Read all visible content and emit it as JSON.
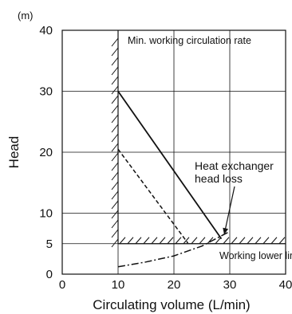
{
  "chart_data": {
    "type": "line",
    "title": "",
    "xlabel": "Circulating volume (L/min)",
    "ylabel": "Head",
    "y_unit": "(m)",
    "xlim": [
      0,
      40
    ],
    "ylim": [
      0,
      40
    ],
    "x_ticks": [
      0,
      10,
      20,
      30,
      40
    ],
    "x_tick_labels": [
      "0",
      "10",
      "20",
      "30",
      "40"
    ],
    "y_ticks": [
      0,
      5,
      10,
      20,
      30,
      40
    ],
    "y_tick_labels": [
      "0",
      "5",
      "10",
      "20",
      "30",
      "40"
    ],
    "grid": true,
    "series": [
      {
        "style": "solid",
        "color": "#111111",
        "x": [
          10,
          28.5
        ],
        "y": [
          30,
          5.8
        ]
      },
      {
        "style": "dashed",
        "color": "#111111",
        "x": [
          10,
          22.5
        ],
        "y": [
          20.5,
          5.1
        ]
      },
      {
        "style": "dash-dot",
        "color": "#111111",
        "x": [
          10,
          15,
          20,
          25,
          30
        ],
        "y": [
          1.2,
          2.0,
          3.0,
          4.6,
          7.0
        ]
      }
    ],
    "regions": [
      {
        "label": "Min. working circulation rate",
        "type": "vertical-limit",
        "x": 10,
        "y_range": [
          5,
          40
        ]
      },
      {
        "label": "Working lower limit",
        "type": "horizontal-limit",
        "y": 5,
        "x_range": [
          10,
          40
        ]
      }
    ],
    "annotations": [
      {
        "text_lines": [
          "Heat exchanger",
          "head loss"
        ],
        "points_to": {
          "x": 29,
          "y": 6.5
        }
      }
    ]
  },
  "colors": {
    "line": "#111111",
    "background": "#ffffff"
  }
}
